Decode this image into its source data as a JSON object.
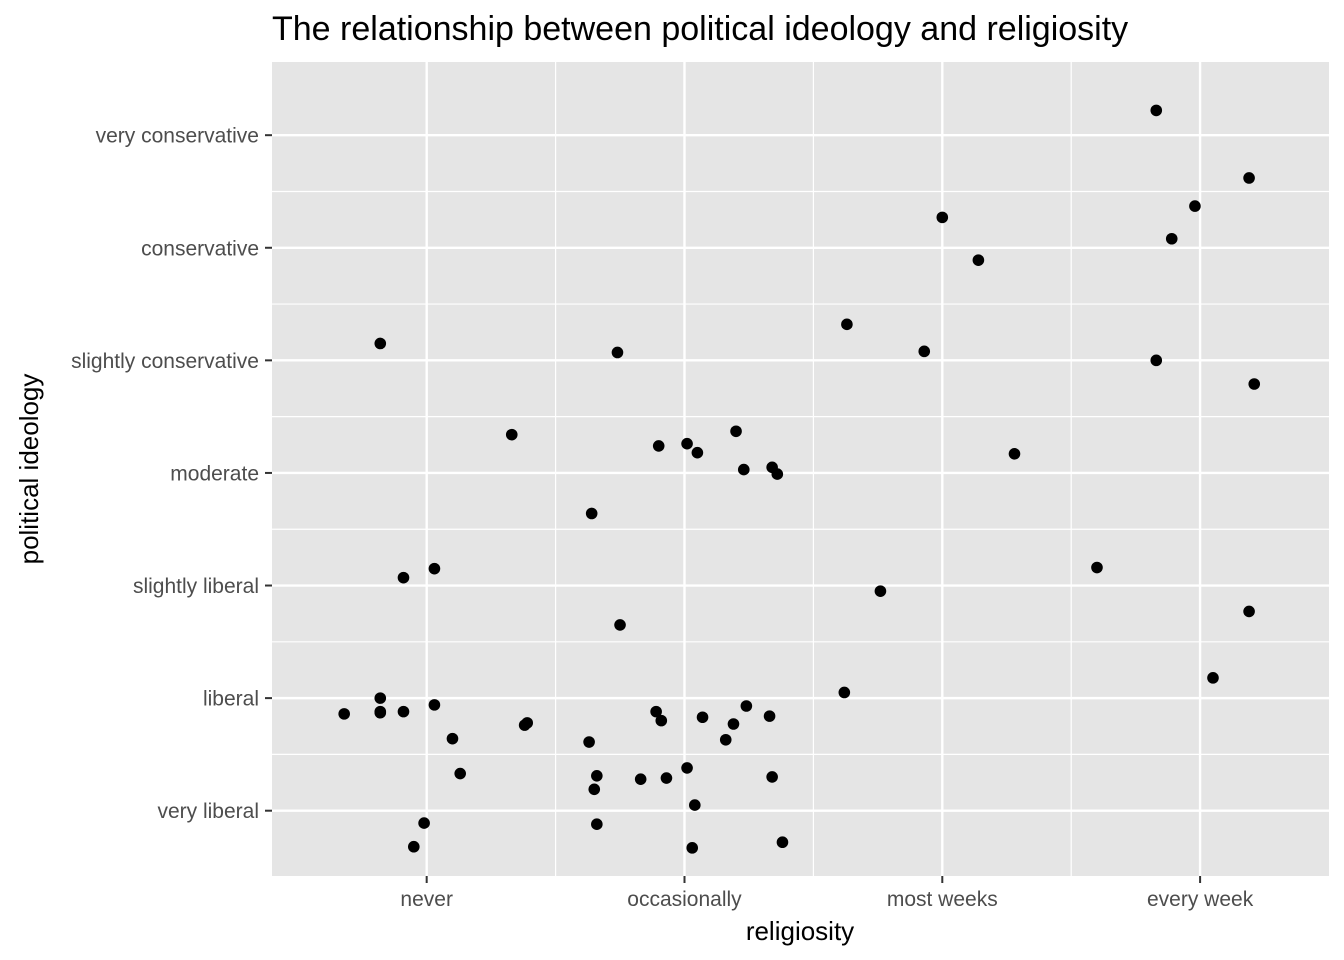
{
  "chart_data": {
    "type": "scatter",
    "title": "The relationship between political ideology and religiosity",
    "xlabel": "religiosity",
    "ylabel": "political ideology",
    "x_categories": [
      "never",
      "occasionally",
      "most weeks",
      "every week"
    ],
    "y_categories": [
      "very liberal",
      "liberal",
      "slightly liberal",
      "moderate",
      "slightly conservative",
      "conservative",
      "very conservative"
    ],
    "xlim": [
      0.4,
      4.5
    ],
    "ylim": [
      0.42,
      7.65
    ],
    "grid": true,
    "legend": "none",
    "colors": {
      "panel": "#e5e5e5",
      "grid": "#ffffff",
      "point": "#000000",
      "tick": "#4d4d4d"
    },
    "points": [
      {
        "x": 0.82,
        "y": 1.87
      },
      {
        "x": 0.82,
        "y": 1.88
      },
      {
        "x": 0.68,
        "y": 1.86
      },
      {
        "x": 0.91,
        "y": 1.88
      },
      {
        "x": 1.03,
        "y": 1.94
      },
      {
        "x": 1.1,
        "y": 1.64
      },
      {
        "x": 1.13,
        "y": 1.33
      },
      {
        "x": 0.99,
        "y": 0.89
      },
      {
        "x": 0.95,
        "y": 0.68
      },
      {
        "x": 1.38,
        "y": 1.76
      },
      {
        "x": 1.39,
        "y": 1.78
      },
      {
        "x": 0.82,
        "y": 2.0
      },
      {
        "x": 0.91,
        "y": 3.07
      },
      {
        "x": 1.03,
        "y": 3.15
      },
      {
        "x": 0.82,
        "y": 5.15
      },
      {
        "x": 1.33,
        "y": 4.34
      },
      {
        "x": 1.63,
        "y": 1.61
      },
      {
        "x": 1.65,
        "y": 1.19
      },
      {
        "x": 1.66,
        "y": 1.31
      },
      {
        "x": 1.75,
        "y": 2.65
      },
      {
        "x": 1.66,
        "y": 0.88
      },
      {
        "x": 1.83,
        "y": 1.28
      },
      {
        "x": 1.89,
        "y": 1.88
      },
      {
        "x": 1.91,
        "y": 1.8
      },
      {
        "x": 1.93,
        "y": 1.29
      },
      {
        "x": 2.01,
        "y": 1.38
      },
      {
        "x": 2.04,
        "y": 1.05
      },
      {
        "x": 2.03,
        "y": 0.67
      },
      {
        "x": 2.07,
        "y": 1.83
      },
      {
        "x": 2.16,
        "y": 1.63
      },
      {
        "x": 2.19,
        "y": 1.77
      },
      {
        "x": 2.24,
        "y": 1.93
      },
      {
        "x": 2.33,
        "y": 1.84
      },
      {
        "x": 2.34,
        "y": 1.3
      },
      {
        "x": 2.38,
        "y": 0.72
      },
      {
        "x": 1.64,
        "y": 3.64
      },
      {
        "x": 1.74,
        "y": 5.07
      },
      {
        "x": 1.9,
        "y": 4.24
      },
      {
        "x": 2.01,
        "y": 4.26
      },
      {
        "x": 2.05,
        "y": 4.18
      },
      {
        "x": 2.2,
        "y": 4.37
      },
      {
        "x": 2.23,
        "y": 4.03
      },
      {
        "x": 2.34,
        "y": 4.05
      },
      {
        "x": 2.36,
        "y": 3.99
      },
      {
        "x": 2.63,
        "y": 5.32
      },
      {
        "x": 2.76,
        "y": 2.95
      },
      {
        "x": 2.62,
        "y": 2.05
      },
      {
        "x": 2.93,
        "y": 5.08
      },
      {
        "x": 3.0,
        "y": 6.27
      },
      {
        "x": 3.14,
        "y": 5.89
      },
      {
        "x": 3.28,
        "y": 4.17
      },
      {
        "x": 3.6,
        "y": 3.16
      },
      {
        "x": 3.83,
        "y": 5.0
      },
      {
        "x": 3.83,
        "y": 7.22
      },
      {
        "x": 3.89,
        "y": 6.08
      },
      {
        "x": 3.98,
        "y": 6.37
      },
      {
        "x": 4.19,
        "y": 6.62
      },
      {
        "x": 4.21,
        "y": 4.79
      },
      {
        "x": 4.19,
        "y": 2.77
      },
      {
        "x": 4.05,
        "y": 2.18
      }
    ]
  }
}
